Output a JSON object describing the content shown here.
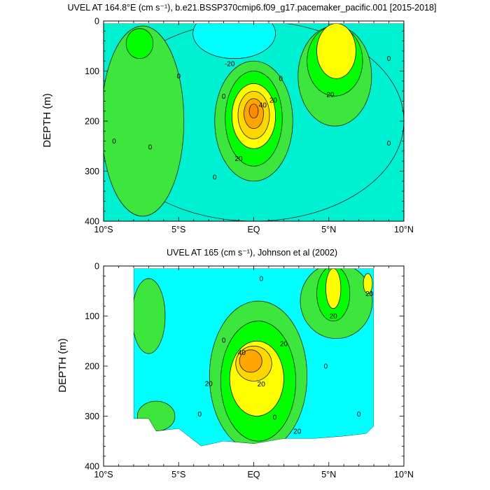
{
  "figure": {
    "palette": {
      "cyan": "#00ffff",
      "teal": "#00f0d2",
      "light_green": "#3ce63c",
      "green": "#00ff00",
      "yellow": "#ffff00",
      "gold": "#ffd700",
      "orange": "#ffa500",
      "dark_orange": "#ff8c00",
      "contour": "#000000"
    }
  },
  "chart_data": [
    {
      "type": "contour",
      "title": "UVEL AT 164.8°E (cm s⁻¹), b.e21.BSSP370cmip6.f09_g17.pacemaker_pacific.001 [2015-2018]",
      "xlabel": "",
      "ylabel": "DEPTH (m)",
      "xlim": [
        -10,
        10
      ],
      "ylim": [
        400,
        0
      ],
      "x_ticks": [
        -10,
        -5,
        0,
        5,
        10
      ],
      "x_tick_labels": [
        "10°S",
        "5°S",
        "EQ",
        "5°N",
        "10°N"
      ],
      "y_ticks": [
        0,
        100,
        200,
        300,
        400
      ],
      "y_tick_labels": [
        "0",
        "100",
        "200",
        "300",
        "400"
      ],
      "data_extent": {
        "lat": [
          -10,
          10
        ],
        "depth": [
          5,
          400
        ]
      },
      "contour_interval": 10,
      "background_level": 0,
      "features": [
        {
          "level": -10,
          "color": "teal",
          "lat": 0,
          "depth": 200,
          "width": 20,
          "height": 400
        },
        {
          "level": -20,
          "color": "cyan",
          "lat": -1.3,
          "depth": 25,
          "width": 5.5,
          "height": 100
        },
        {
          "level": 0,
          "color": "light_green",
          "lat": -7.4,
          "depth": 200,
          "width": 5.5,
          "height": 380
        },
        {
          "level": 10,
          "color": "green",
          "lat": -7.6,
          "depth": 45,
          "width": 1.8,
          "height": 60
        },
        {
          "level": 0,
          "color": "light_green",
          "lat": 0,
          "depth": 200,
          "width": 5.2,
          "height": 240
        },
        {
          "level": 10,
          "color": "green",
          "lat": 0,
          "depth": 195,
          "width": 3.8,
          "height": 190
        },
        {
          "level": 20,
          "color": "yellow",
          "lat": 0,
          "depth": 190,
          "width": 2.9,
          "height": 130
        },
        {
          "level": 30,
          "color": "gold",
          "lat": 0,
          "depth": 188,
          "width": 2.1,
          "height": 95
        },
        {
          "level": 40,
          "color": "orange",
          "lat": 0,
          "depth": 185,
          "width": 1.3,
          "height": 60
        },
        {
          "level": 50,
          "color": "dark_orange",
          "lat": 0,
          "depth": 180,
          "width": 0.6,
          "height": 28
        },
        {
          "level": 0,
          "color": "light_green",
          "lat": 5.4,
          "depth": 110,
          "width": 4.9,
          "height": 200
        },
        {
          "level": 10,
          "color": "green",
          "lat": 5.4,
          "depth": 80,
          "width": 3.7,
          "height": 140
        },
        {
          "level": 20,
          "color": "yellow",
          "lat": 5.5,
          "depth": 60,
          "width": 2.6,
          "height": 110
        }
      ],
      "contour_labels": [
        {
          "text": "-20",
          "lat": -1.6,
          "depth": 85
        },
        {
          "text": "0",
          "lat": -5,
          "depth": 110
        },
        {
          "text": "0",
          "lat": 1.8,
          "depth": 115
        },
        {
          "text": "0",
          "lat": 9,
          "depth": 75
        },
        {
          "text": "20",
          "lat": 5.1,
          "depth": 147
        },
        {
          "text": "0",
          "lat": -2,
          "depth": 150
        },
        {
          "text": "40",
          "lat": 0.6,
          "depth": 168
        },
        {
          "text": "20",
          "lat": 1.3,
          "depth": 158
        },
        {
          "text": "0",
          "lat": -9.3,
          "depth": 240
        },
        {
          "text": "0",
          "lat": -6.9,
          "depth": 252
        },
        {
          "text": "20",
          "lat": -1,
          "depth": 275
        },
        {
          "text": "0",
          "lat": -2.6,
          "depth": 312
        },
        {
          "text": "0",
          "lat": 9,
          "depth": 244
        }
      ]
    },
    {
      "type": "contour",
      "title": "UVEL AT 165 (cm s⁻¹), Johnson et al (2002)",
      "xlabel": "",
      "ylabel": "DEPTH (m)",
      "xlim": [
        -10,
        10
      ],
      "ylim": [
        400,
        0
      ],
      "x_ticks": [
        -10,
        -5,
        0,
        5,
        10
      ],
      "x_tick_labels": [
        "10°S",
        "5°S",
        "EQ",
        "5°N",
        "10°N"
      ],
      "y_ticks": [
        0,
        100,
        200,
        300,
        400
      ],
      "y_tick_labels": [
        "0",
        "100",
        "200",
        "300",
        "400"
      ],
      "data_extent": {
        "lat": [
          -8,
          8
        ],
        "depth_top": 5,
        "bottom_profile": [
          [
            -8,
            305
          ],
          [
            -7,
            305
          ],
          [
            -6.5,
            330
          ],
          [
            -5,
            325
          ],
          [
            -3.5,
            360
          ],
          [
            -2,
            350
          ],
          [
            0,
            355
          ],
          [
            2,
            345
          ],
          [
            4,
            345
          ],
          [
            6,
            340
          ],
          [
            7.5,
            335
          ],
          [
            8,
            320
          ]
        ]
      },
      "contour_interval": 10,
      "background_level": -10,
      "features": [
        {
          "level": 0,
          "color": "light_green",
          "lat": -7,
          "depth": 100,
          "width": 2.2,
          "height": 150
        },
        {
          "level": 0,
          "color": "light_green",
          "lat": -6.5,
          "depth": 300,
          "width": 2.5,
          "height": 60
        },
        {
          "level": 0,
          "color": "light_green",
          "lat": 0.3,
          "depth": 220,
          "width": 6.5,
          "height": 300
        },
        {
          "level": 10,
          "color": "green",
          "lat": 0.3,
          "depth": 230,
          "width": 5,
          "height": 240
        },
        {
          "level": 20,
          "color": "yellow",
          "lat": 0.2,
          "depth": 225,
          "width": 3.6,
          "height": 150
        },
        {
          "level": 30,
          "color": "gold",
          "lat": 0,
          "depth": 195,
          "width": 2.4,
          "height": 70
        },
        {
          "level": 40,
          "color": "orange",
          "lat": -0.2,
          "depth": 190,
          "width": 1.5,
          "height": 45
        },
        {
          "level": 0,
          "color": "light_green",
          "lat": 5.5,
          "depth": 70,
          "width": 4.8,
          "height": 150
        },
        {
          "level": 10,
          "color": "green",
          "lat": 5.3,
          "depth": 55,
          "width": 2.2,
          "height": 110
        },
        {
          "level": 20,
          "color": "yellow",
          "lat": 5.3,
          "depth": 45,
          "width": 1,
          "height": 80
        },
        {
          "level": 20,
          "color": "yellow",
          "lat": 7.6,
          "depth": 35,
          "width": 0.6,
          "height": 40
        }
      ],
      "contour_labels": [
        {
          "text": "0",
          "lat": 0.5,
          "depth": 25
        },
        {
          "text": "20",
          "lat": 7.7,
          "depth": 55
        },
        {
          "text": "20",
          "lat": 5.3,
          "depth": 100
        },
        {
          "text": "0",
          "lat": -2,
          "depth": 148
        },
        {
          "text": "20",
          "lat": 2,
          "depth": 155
        },
        {
          "text": "40",
          "lat": -0.8,
          "depth": 173
        },
        {
          "text": "0",
          "lat": 4.8,
          "depth": 200
        },
        {
          "text": "20",
          "lat": -3,
          "depth": 235
        },
        {
          "text": "20",
          "lat": 0.5,
          "depth": 236
        },
        {
          "text": "0",
          "lat": -3.6,
          "depth": 296
        },
        {
          "text": "0",
          "lat": 1.4,
          "depth": 302
        },
        {
          "text": "0",
          "lat": 7,
          "depth": 296
        },
        {
          "text": "20",
          "lat": 2.9,
          "depth": 330
        }
      ]
    }
  ]
}
